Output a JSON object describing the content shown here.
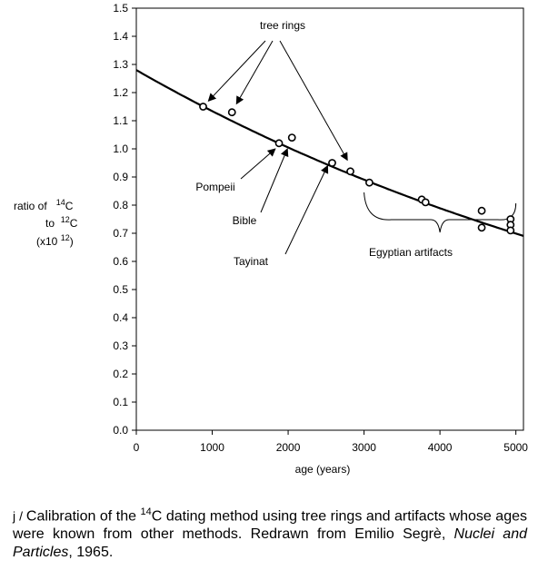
{
  "chart_data": {
    "type": "scatter",
    "xlabel": "age (years)",
    "ylabel": {
      "line1": "ratio of",
      "line1_sup": "14",
      "line1_tail": "C",
      "line2": "to",
      "line2_sup": "12",
      "line2_tail": "C",
      "line3": "(x10",
      "line3_sup": "12",
      "line3_tail": ")"
    },
    "xlim": [
      0,
      5100
    ],
    "ylim": [
      0.0,
      1.5
    ],
    "xticks": [
      0,
      1000,
      2000,
      3000,
      4000,
      5000
    ],
    "yticks": [
      0.0,
      0.1,
      0.2,
      0.3,
      0.4,
      0.5,
      0.6,
      0.7,
      0.8,
      0.9,
      1.0,
      1.1,
      1.2,
      1.3,
      1.4,
      1.5
    ],
    "grid": false,
    "series": [
      {
        "marker": "open-circle",
        "points": [
          {
            "x": 880,
            "y": 1.15
          },
          {
            "x": 1260,
            "y": 1.13
          },
          {
            "x": 1880,
            "y": 1.02
          },
          {
            "x": 2050,
            "y": 1.04
          },
          {
            "x": 2580,
            "y": 0.95
          },
          {
            "x": 2820,
            "y": 0.92
          },
          {
            "x": 3070,
            "y": 0.88
          },
          {
            "x": 3760,
            "y": 0.82
          },
          {
            "x": 3810,
            "y": 0.81
          },
          {
            "x": 4550,
            "y": 0.78
          },
          {
            "x": 4550,
            "y": 0.72
          },
          {
            "x": 4930,
            "y": 0.75
          },
          {
            "x": 4930,
            "y": 0.73
          },
          {
            "x": 4930,
            "y": 0.71
          }
        ]
      }
    ],
    "fit_curve": {
      "type": "exponential-decay",
      "y0": 1.28,
      "half_life": 5730,
      "x_range": [
        0,
        5100
      ]
    },
    "annotations": [
      {
        "text": "tree rings",
        "arrow_targets": [
          {
            "x": 950,
            "y": 1.17
          },
          {
            "x": 1320,
            "y": 1.16
          },
          {
            "x": 2780,
            "y": 0.96
          }
        ]
      },
      {
        "text": "Pompeii",
        "arrow_targets": [
          {
            "x": 1830,
            "y": 1.0
          }
        ]
      },
      {
        "text": "Bible",
        "arrow_targets": [
          {
            "x": 1990,
            "y": 1.0
          }
        ]
      },
      {
        "text": "Tayinat",
        "arrow_targets": [
          {
            "x": 2520,
            "y": 0.94
          }
        ]
      },
      {
        "text": "Egyptian artifacts",
        "brace_range": [
          3000,
          5000
        ]
      }
    ]
  },
  "caption": {
    "label": "j",
    "separator": " / ",
    "text_before_sup": "Calibration of the ",
    "sup": "14",
    "text_after_sup": "C dating method using tree rings and artifacts whose ages were known from other methods. Redrawn from Emilio Segrè, ",
    "italic": "Nuclei and Particles",
    "text_end": ", 1965."
  }
}
